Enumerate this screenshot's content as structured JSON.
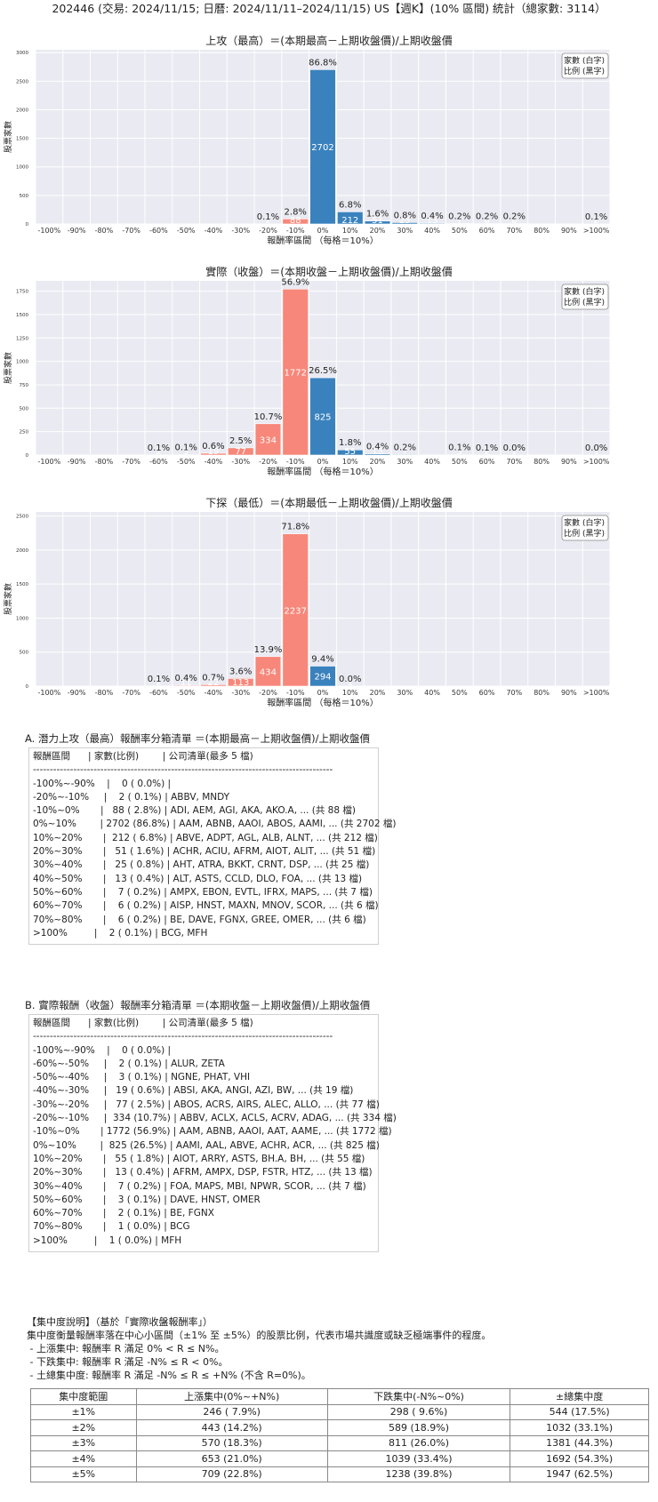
{
  "title": "202446 (交易: 2024/11/15; 日曆: 2024/11/11–2024/11/15) US【週K】(10% 區間) 統計（總家數: 3114）",
  "legend": [
    "家數 (白字)",
    "比例 (黑字)"
  ],
  "colors": {
    "positive": "#3a82bd",
    "negative": "#f7877a",
    "plot_bg": "#eaeaf2",
    "grid": "#ffffff"
  },
  "chart_data": [
    {
      "type": "bar",
      "title": "上攻（最高）＝(本期最高－上期收盤價)/上期收盤價",
      "xlabel": "報酬率區間 （每格＝10%）",
      "ylabel": "股票家數",
      "ylim": [
        0,
        3050
      ],
      "yticks": [
        0,
        500,
        1000,
        1500,
        2000,
        2500,
        3000
      ],
      "grid": true,
      "legend_position": "top-right",
      "categories": [
        "-100%",
        "-90%",
        "-80%",
        "-70%",
        "-60%",
        "-50%",
        "-40%",
        "-30%",
        "-20%",
        "-10%",
        "0%",
        "10%",
        "20%",
        "30%",
        "40%",
        "50%",
        "60%",
        "70%",
        "80%",
        "90%",
        ">100%"
      ],
      "values": [
        0,
        0,
        0,
        0,
        0,
        0,
        0,
        0,
        2,
        88,
        2702,
        212,
        51,
        25,
        13,
        7,
        6,
        6,
        0,
        0,
        2
      ],
      "pct_labels": [
        "",
        "",
        "",
        "",
        "",
        "",
        "",
        "",
        "0.1%",
        "2.8%",
        "86.8%",
        "6.8%",
        "1.6%",
        "0.8%",
        "0.4%",
        "0.2%",
        "0.2%",
        "0.2%",
        "",
        "",
        "0.1%"
      ]
    },
    {
      "type": "bar",
      "title": "實際（收盤）＝(本期收盤－上期收盤價)/上期收盤價",
      "xlabel": "報酬率區間 （每格＝10%）",
      "ylabel": "股票家數",
      "ylim": [
        0,
        1860
      ],
      "yticks": [
        0,
        250,
        500,
        750,
        1000,
        1250,
        1500,
        1750
      ],
      "grid": true,
      "legend_position": "top-right",
      "categories": [
        "-100%",
        "-90%",
        "-80%",
        "-70%",
        "-60%",
        "-50%",
        "-40%",
        "-30%",
        "-20%",
        "-10%",
        "0%",
        "10%",
        "20%",
        "30%",
        "40%",
        "50%",
        "60%",
        "70%",
        "80%",
        "90%",
        ">100%"
      ],
      "values": [
        0,
        0,
        0,
        0,
        2,
        3,
        19,
        77,
        334,
        1772,
        825,
        55,
        13,
        7,
        0,
        3,
        2,
        1,
        0,
        0,
        1
      ],
      "pct_labels": [
        "",
        "",
        "",
        "",
        "0.1%",
        "0.1%",
        "0.6%",
        "2.5%",
        "10.7%",
        "56.9%",
        "26.5%",
        "1.8%",
        "0.4%",
        "0.2%",
        "",
        "0.1%",
        "0.1%",
        "0.0%",
        "",
        "",
        "0.0%"
      ]
    },
    {
      "type": "bar",
      "title": "下探（最低）＝(本期最低－上期收盤價)/上期收盤價",
      "xlabel": "報酬率區間 （每格＝10%）",
      "ylabel": "股票家數",
      "ylim": [
        0,
        2560
      ],
      "yticks": [
        0,
        500,
        1000,
        1500,
        2000,
        2500
      ],
      "grid": true,
      "legend_position": "top-right",
      "categories": [
        "-100%",
        "-90%",
        "-80%",
        "-70%",
        "-60%",
        "-50%",
        "-40%",
        "-30%",
        "-20%",
        "-10%",
        "0%",
        "10%",
        "20%",
        "30%",
        "40%",
        "50%",
        "60%",
        "70%",
        "80%",
        "90%",
        ">100%"
      ],
      "values": [
        0,
        0,
        0,
        0,
        2,
        11,
        22,
        113,
        434,
        2237,
        294,
        1,
        0,
        0,
        0,
        0,
        0,
        0,
        0,
        0,
        0
      ],
      "pct_labels": [
        "",
        "",
        "",
        "",
        "0.1%",
        "0.4%",
        "0.7%",
        "3.6%",
        "13.9%",
        "71.8%",
        "9.4%",
        "0.0%",
        "",
        "",
        "",
        "",
        "",
        "",
        "",
        "",
        ""
      ]
    }
  ],
  "list_a": {
    "heading": "A. 潛力上攻（最高）報酬率分箱清單 ＝(本期最高－上期收盤價)/上期收盤價",
    "lines": [
      "報酬區間      | 家數(比例)        | 公司清單(最多 5 檔)",
      "-----------------------------------------------------------------------------------------",
      "-100%~-90%    |    0 ( 0.0%) |",
      "-20%~-10%     |    2 ( 0.1%) | ABBV, MNDY",
      "-10%~0%       |   88 ( 2.8%) | ADI, AEM, AGI, AKA, AKO.A, ... (共 88 檔)",
      "0%~10%        | 2702 (86.8%) | AAM, ABNB, AAOI, ABOS, AAMI, ... (共 2702 檔)",
      "10%~20%       |  212 ( 6.8%) | ABVE, ADPT, AGL, ALB, ALNT, ... (共 212 檔)",
      "20%~30%       |   51 ( 1.6%) | ACHR, ACIU, AFRM, AIOT, ALIT, ... (共 51 檔)",
      "30%~40%       |   25 ( 0.8%) | AHT, ATRA, BKKT, CRNT, DSP, ... (共 25 檔)",
      "40%~50%       |   13 ( 0.4%) | ALT, ASTS, CCLD, DLO, FOA, ... (共 13 檔)",
      "50%~60%       |    7 ( 0.2%) | AMPX, EBON, EVTL, IFRX, MAPS, ... (共 7 檔)",
      "60%~70%       |    6 ( 0.2%) | AISP, HNST, MAXN, MNOV, SCOR, ... (共 6 檔)",
      "70%~80%       |    6 ( 0.2%) | BE, DAVE, FGNX, GREE, OMER, ... (共 6 檔)",
      ">100%         |    2 ( 0.1%) | BCG, MFH"
    ]
  },
  "list_b": {
    "heading": "B. 實際報酬（收盤）報酬率分箱清單 ＝(本期收盤－上期收盤價)/上期收盤價",
    "lines": [
      "報酬區間      | 家數(比例)        | 公司清單(最多 5 檔)",
      "-----------------------------------------------------------------------------------------",
      "-100%~-90%    |    0 ( 0.0%) |",
      "-60%~-50%     |    2 ( 0.1%) | ALUR, ZETA",
      "-50%~-40%     |    3 ( 0.1%) | NGNE, PHAT, VHI",
      "-40%~-30%     |   19 ( 0.6%) | ABSI, AKA, ANGI, AZI, BW, ... (共 19 檔)",
      "-30%~-20%     |   77 ( 2.5%) | ABOS, ACRS, AIRS, ALEC, ALLO, ... (共 77 檔)",
      "-20%~-10%     |  334 (10.7%) | ABBV, ACLX, ACLS, ACRV, ADAG, ... (共 334 檔)",
      "-10%~0%       | 1772 (56.9%) | AAM, ABNB, AAOI, AAT, AAME, ... (共 1772 檔)",
      "0%~10%        |  825 (26.5%) | AAMI, AAL, ABVE, ACHR, ACR, ... (共 825 檔)",
      "10%~20%       |   55 ( 1.8%) | AIOT, ARRY, ASTS, BH.A, BH, ... (共 55 檔)",
      "20%~30%       |   13 ( 0.4%) | AFRM, AMPX, DSP, FSTR, HTZ, ... (共 13 檔)",
      "30%~40%       |    7 ( 0.2%) | FOA, MAPS, MBI, NPWR, SCOR, ... (共 7 檔)",
      "50%~60%       |    3 ( 0.1%) | DAVE, HNST, OMER",
      "60%~70%       |    2 ( 0.1%) | BE, FGNX",
      "70%~80%       |    1 ( 0.0%) | BCG",
      ">100%         |    1 ( 0.0%) | MFH"
    ]
  },
  "concentration": {
    "lines": [
      "【集中度說明】（基於「實際收盤報酬率」）",
      "集中度衡量報酬率落在中心小區間（±1% 至 ±5%）的股票比例，代表市場共識度或缺乏極端事件的程度。",
      " - 上漲集中: 報酬率 R 滿足 0% < R ≤ N%。",
      " - 下跌集中: 報酬率 R 滿足 -N% ≤ R < 0%。",
      " - 土總集中度: 報酬率 R 滿足 -N% ≤ R ≤ +N% (不含 R=0%)。"
    ],
    "headers": [
      "集中度範圍",
      "上漲集中(0%~+N%)",
      "下跌集中(-N%~0%)",
      "±總集中度"
    ],
    "rows": [
      [
        "±1%",
        "246 ( 7.9%)",
        "298 ( 9.6%)",
        "544 (17.5%)"
      ],
      [
        "±2%",
        "443 (14.2%)",
        "589 (18.9%)",
        "1032 (33.1%)"
      ],
      [
        "±3%",
        "570 (18.3%)",
        "811 (26.0%)",
        "1381 (44.3%)"
      ],
      [
        "±4%",
        "653 (21.0%)",
        "1039 (33.4%)",
        "1692 (54.3%)"
      ],
      [
        "±5%",
        "709 (22.8%)",
        "1238 (39.8%)",
        "1947 (62.5%)"
      ]
    ]
  }
}
